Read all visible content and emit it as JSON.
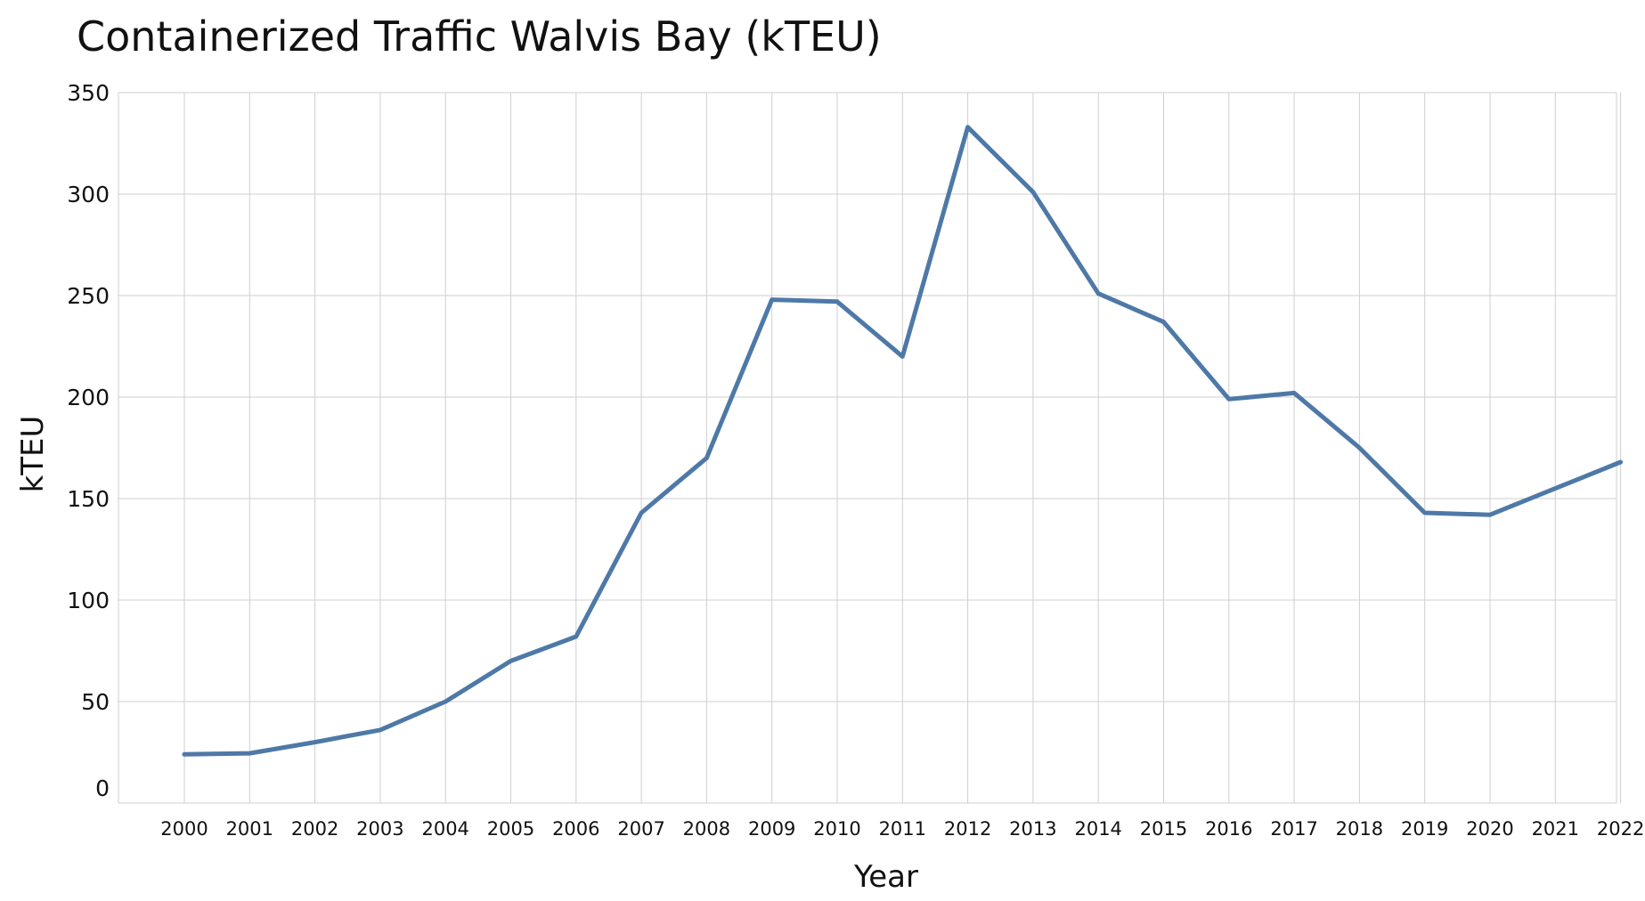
{
  "chart_data": {
    "type": "line",
    "title": "Containerized Traffic Walvis Bay (kTEU)",
    "xlabel": "Year",
    "ylabel": "kTEU",
    "ylim": [
      0,
      350
    ],
    "yticks": [
      0,
      50,
      100,
      150,
      200,
      250,
      300,
      350
    ],
    "grid": true,
    "line_color": "#4e79a7",
    "x": [
      "2000",
      "2001",
      "2002",
      "2003",
      "2004",
      "2005",
      "2006",
      "2007",
      "2008",
      "2009",
      "2010",
      "2011",
      "2012",
      "2013",
      "2014",
      "2015",
      "2016",
      "2017",
      "2018",
      "2019",
      "2020",
      "2021",
      "2022"
    ],
    "series": [
      {
        "values": [
          24,
          24.5,
          30,
          36,
          50,
          70,
          82,
          143,
          170,
          248,
          247,
          220,
          333,
          301,
          251,
          237,
          199,
          202,
          175,
          143,
          142,
          155,
          168
        ]
      }
    ]
  }
}
